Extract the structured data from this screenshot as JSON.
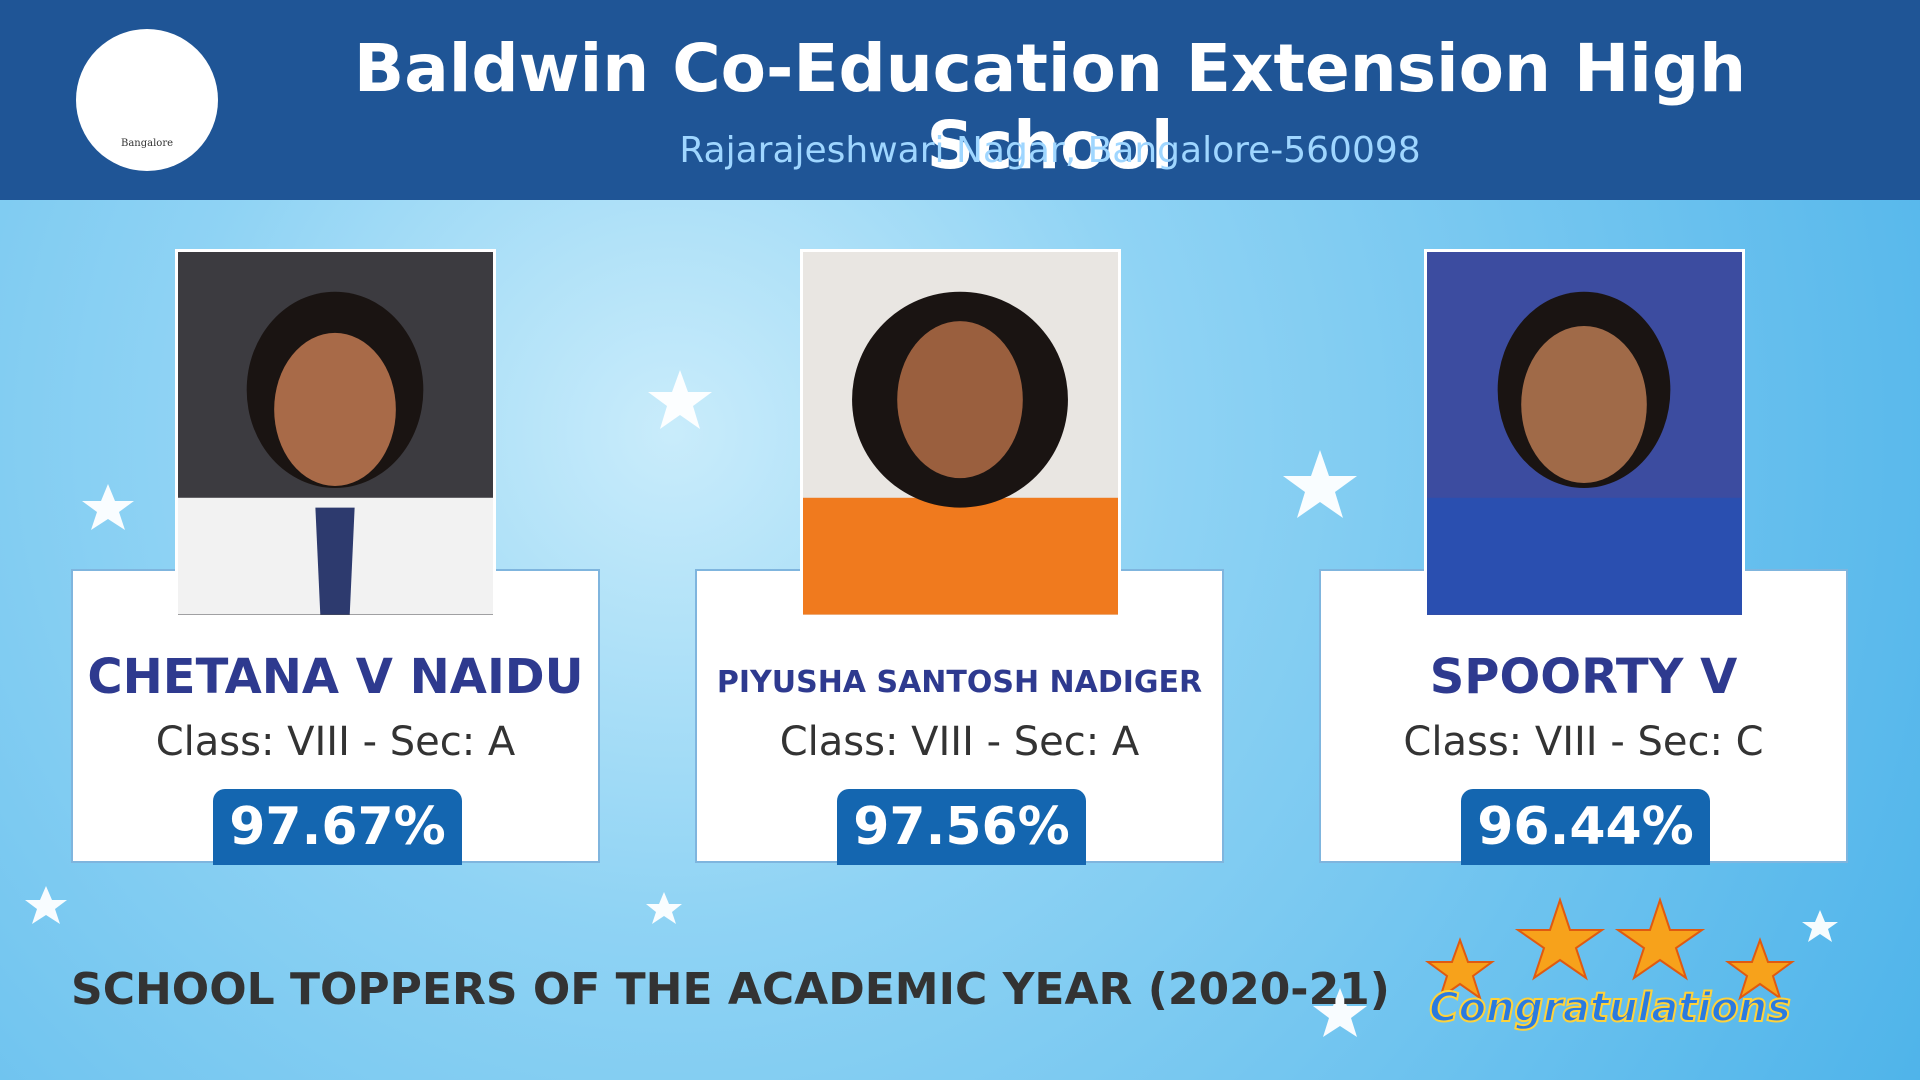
{
  "header": {
    "title": "Baldwin Co-Education Extension High School",
    "subtitle": "Rajarajeshwari Nagar, Bangalore-560098",
    "logo_label": "Bangalore"
  },
  "toppers": [
    {
      "name": "CHETANA V NAIDU",
      "class_section": "Class: VIII - Sec: A",
      "score": "97.67%"
    },
    {
      "name": "PIYUSHA SANTOSH NADIGER",
      "class_section": "Class: VIII - Sec: A",
      "score": "97.56%"
    },
    {
      "name": "SPOORTY V",
      "class_section": "Class: VIII - Sec: C",
      "score": "96.44%"
    }
  ],
  "footer": {
    "caption": "SCHOOL TOPPERS OF THE ACADEMIC YEAR (2020-21)",
    "badge": "Congratulations"
  }
}
